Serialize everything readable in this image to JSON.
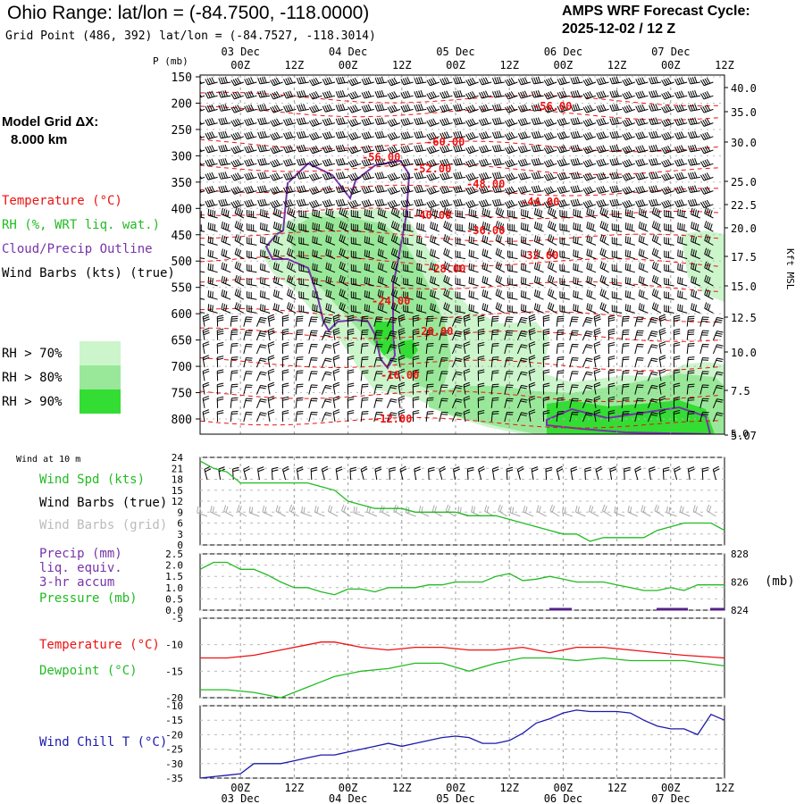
{
  "header": {
    "title": "Ohio Range:  lat/lon = (-84.7500, -118.0000)",
    "subtitle": "Grid Point (486, 392) lat/lon = (-84.7527, -118.3014)",
    "cycle_line1": "AMPS WRF Forecast Cycle:",
    "cycle_line2": "2025-12-02 / 12  Z"
  },
  "sidebar": {
    "grid_label": "Model Grid ΔX:",
    "grid_value": "8.000 km",
    "legend": [
      {
        "text": "Temperature (°C)",
        "color": "#ee1111"
      },
      {
        "text": "RH (%, WRT liq. wat.)",
        "color": "#22bb22"
      },
      {
        "text": "Cloud/Precip Outline",
        "color": "#7733aa"
      },
      {
        "text": "Wind Barbs (kts) (true)",
        "color": "#000000"
      }
    ],
    "rh_keys": [
      {
        "text": "RH > 70%",
        "color": "#ccf5cc"
      },
      {
        "text": "RH > 80%",
        "color": "#99e899"
      },
      {
        "text": "RH > 90%",
        "color": "#33dd33"
      }
    ]
  },
  "time_axis": {
    "ticks": [
      "00Z",
      "12Z",
      "00Z",
      "12Z",
      "00Z",
      "12Z",
      "00Z",
      "12Z",
      "00Z",
      "12Z"
    ],
    "days": [
      "03 Dec",
      "04 Dec",
      "05 Dec",
      "06 Dec",
      "07 Dec"
    ]
  },
  "profile": {
    "p_label": "P (mb)",
    "pressure_ticks": [
      150,
      200,
      250,
      300,
      350,
      400,
      450,
      500,
      550,
      600,
      650,
      700,
      750,
      800
    ],
    "kft_ticks": [
      "40.0",
      "35.0",
      "30.0",
      "25.0",
      "22.5",
      "20.0",
      "17.5",
      "15.0",
      "12.5",
      "10.0",
      "7.5",
      "5.07"
    ],
    "kft_extra": "5.0",
    "kft_label": "Kft MSL",
    "temp_labels": [
      "-56.00",
      "-60.00",
      "-56.00",
      "-52.00",
      "-48.00",
      "-44.00",
      "-40.00",
      "-36.00",
      "-32.00",
      "-28.00",
      "-24.00",
      "-20.00",
      "-16.00",
      "-12.00"
    ]
  },
  "panel_wind": {
    "heading": "Wind at 10 m",
    "label_spd": "Wind Spd (kts)",
    "label_barbs": "Wind Barbs (true)",
    "label_grid": "Wind Barbs (grid)",
    "yticks": [
      24,
      21,
      18,
      15,
      12,
      9,
      6,
      3,
      0
    ]
  },
  "panel_precip": {
    "label1": "Precip (mm)",
    "label2": "liq. equiv.",
    "label3": "3-hr accum",
    "label4": "Pressure (mb)",
    "yticks": [
      "2.5",
      "2.0",
      "1.5",
      "1.0",
      "0.5",
      "0.0"
    ],
    "pticks": [
      "828",
      "826",
      "824"
    ],
    "punit": "(mb)"
  },
  "panel_temp": {
    "label_t": "Temperature (°C)",
    "label_td": "Dewpoint (°C)",
    "yticks": [
      "-5",
      "-10",
      "-15",
      "-20"
    ]
  },
  "panel_chill": {
    "label": "Wind Chill T (°C)",
    "yticks": [
      "-10",
      "-15",
      "-20",
      "-25",
      "-30",
      "-35"
    ]
  },
  "chart_data": [
    {
      "type": "line",
      "title": "Wind Spd (kts) at 10 m",
      "x_hours": [
        0,
        3,
        6,
        9,
        12,
        15,
        18,
        21,
        24,
        27,
        30,
        33,
        36,
        39,
        42,
        45,
        48,
        51,
        54,
        57,
        60,
        63,
        66,
        69,
        72,
        75,
        78,
        81,
        84,
        87,
        90,
        93,
        96,
        99,
        102,
        105,
        108,
        111,
        114,
        117
      ],
      "series": [
        {
          "name": "Wind Spd",
          "values": [
            23,
            21,
            20,
            17,
            17,
            17,
            17,
            17,
            17,
            16,
            15,
            12,
            11,
            10,
            10,
            10,
            9,
            9,
            9,
            9,
            8,
            8,
            8,
            7,
            6,
            5,
            4,
            3,
            3,
            1,
            2,
            2,
            2,
            2,
            4,
            5,
            6,
            6,
            6,
            4
          ]
        }
      ],
      "ylim": [
        0,
        24
      ]
    },
    {
      "type": "line",
      "title": "Surface Pressure (mb)",
      "x_hours": [
        0,
        3,
        6,
        9,
        12,
        15,
        18,
        21,
        24,
        27,
        30,
        33,
        36,
        39,
        42,
        45,
        48,
        51,
        54,
        57,
        60,
        63,
        66,
        69,
        72,
        75,
        78,
        81,
        84,
        87,
        90,
        93,
        96,
        99,
        102,
        105,
        108,
        111,
        114,
        117
      ],
      "series": [
        {
          "name": "Pressure",
          "values": [
            826.9,
            827.4,
            827.4,
            826.9,
            826.9,
            826.5,
            826.0,
            825.6,
            825.6,
            825.3,
            825.1,
            825.5,
            825.5,
            825.3,
            825.6,
            825.6,
            825.6,
            825.8,
            825.8,
            826.0,
            826.0,
            826.0,
            826.4,
            826.6,
            826.1,
            826.2,
            826.4,
            826.2,
            826.0,
            826.0,
            826.0,
            825.8,
            825.6,
            825.4,
            825.4,
            825.6,
            825.4,
            825.8,
            825.8,
            825.8
          ]
        }
      ],
      "ylim": [
        824,
        828
      ]
    },
    {
      "type": "line",
      "title": "Temperature / Dewpoint (°C)",
      "x_hours": [
        0,
        6,
        12,
        18,
        24,
        27,
        30,
        36,
        42,
        48,
        54,
        60,
        66,
        72,
        78,
        84,
        90,
        96,
        102,
        108,
        117
      ],
      "series": [
        {
          "name": "Temperature",
          "values": [
            -12.5,
            -12.5,
            -12.0,
            -11.0,
            -10.0,
            -9.5,
            -9.5,
            -10.5,
            -11.0,
            -10.5,
            -10.5,
            -11.0,
            -11.0,
            -10.5,
            -11.5,
            -10.5,
            -10.5,
            -11.0,
            -11.5,
            -12.0,
            -12.5
          ]
        },
        {
          "name": "Dewpoint",
          "values": [
            -18.5,
            -18.5,
            -19.0,
            -20.0,
            -18.0,
            -17.0,
            -16.0,
            -15.0,
            -14.5,
            -13.5,
            -13.5,
            -15.0,
            -13.5,
            -12.5,
            -12.5,
            -13.0,
            -12.5,
            -13.0,
            -13.0,
            -13.0,
            -14.0
          ]
        }
      ],
      "ylim": [
        -20,
        -5
      ]
    },
    {
      "type": "line",
      "title": "Wind Chill T (°C)",
      "x_hours": [
        0,
        3,
        6,
        9,
        12,
        15,
        18,
        21,
        24,
        27,
        30,
        33,
        36,
        39,
        42,
        45,
        48,
        51,
        54,
        57,
        60,
        63,
        66,
        69,
        72,
        75,
        78,
        81,
        84,
        87,
        90,
        93,
        96,
        99,
        102,
        105,
        108,
        111,
        114,
        117
      ],
      "series": [
        {
          "name": "Wind Chill",
          "values": [
            -35,
            -34.5,
            -34,
            -33.5,
            -30,
            -30,
            -30,
            -29,
            -28,
            -27,
            -27,
            -26,
            -25,
            -24,
            -23,
            -24,
            -23,
            -22,
            -21,
            -20.5,
            -21,
            -23,
            -23,
            -22,
            -19.5,
            -16,
            -14.5,
            -12.5,
            -11.5,
            -12,
            -12,
            -12,
            -12.5,
            -15,
            -17,
            -18,
            -18,
            -20,
            -13,
            -15
          ]
        }
      ],
      "ylim": [
        -35,
        -10
      ]
    }
  ]
}
